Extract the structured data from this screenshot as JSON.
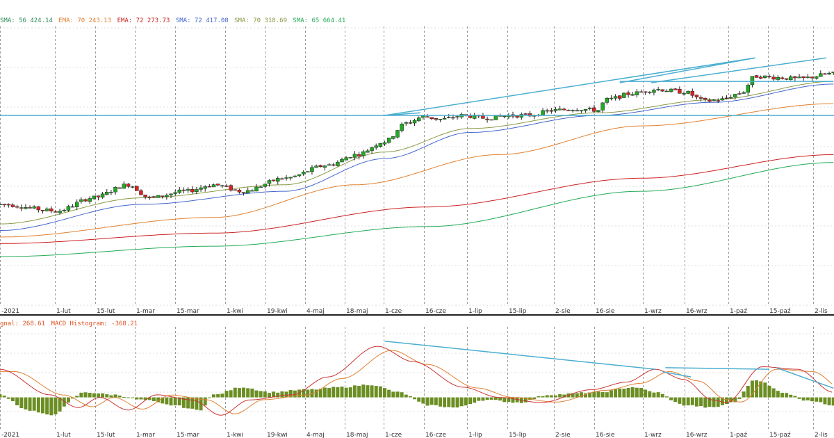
{
  "legend_main": [
    {
      "text": "SMA: 56 424.14",
      "color": "#2e8b57",
      "partial": true
    },
    {
      "text": "EMA: 70 243.13",
      "color": "#e08030"
    },
    {
      "text": "EMA: 72 273.73",
      "color": "#cc2222"
    },
    {
      "text": "SMA: 72 417.08",
      "color": "#4466cc"
    },
    {
      "text": "SMA: 70 318.69",
      "color": "#889944"
    },
    {
      "text": "SMA: 65 664.41",
      "color": "#22aa55"
    }
  ],
  "legend_macd": [
    {
      "text": "gnal: 268.61",
      "color": "#e05020"
    },
    {
      "text": "MACD Histogram: -368.21",
      "color": "#e05020"
    }
  ],
  "x_ticks_main": [
    "-2021",
    "1-lut",
    "15-lut",
    "1-mar",
    "15-mar",
    "1-kwi",
    "19-kwi",
    "4-maj",
    "18-maj",
    "1-cze",
    "16-cze",
    "1-lip",
    "15-lip",
    "2-sie",
    "16-sie",
    "1-wrz",
    "16-wrz",
    "1-paź",
    "15-paź",
    "2-lis"
  ],
  "x_ticks_macd": [
    "-2021",
    "1-lut",
    "15-lut",
    "1-mar",
    "15-mar",
    "1-kwi",
    "19-kwi",
    "4-maj",
    "18-maj",
    "1-cze",
    "16-cze",
    "1-lip",
    "15-lip",
    "2-sie",
    "16-sie",
    "1-wrz",
    "16-wrz",
    "1-paź",
    "15-paź",
    "2-lis"
  ],
  "colors": {
    "up": "#22aa22",
    "down": "#dd2222",
    "wick": "#222222",
    "trend": "#4aaed0",
    "hist": "#6b8e23",
    "macd": "#cc3333",
    "signal": "#e08030",
    "grid_v": "#9a9a9a",
    "grid_h": "#dddddd"
  },
  "chart_data": [
    {
      "type": "candlestick",
      "title": "",
      "price_anchors": [
        [
          0,
          -0.1
        ],
        [
          40,
          -0.15
        ],
        [
          65,
          -0.05
        ],
        [
          90,
          0.05
        ],
        [
          105,
          -0.05
        ],
        [
          130,
          0.0
        ],
        [
          150,
          0.05
        ],
        [
          170,
          0.0
        ],
        [
          200,
          0.1
        ],
        [
          230,
          0.2
        ],
        [
          250,
          0.28
        ],
        [
          270,
          0.38
        ],
        [
          285,
          0.52
        ],
        [
          297,
          0.57
        ],
        [
          310,
          0.55
        ],
        [
          325,
          0.58
        ],
        [
          340,
          0.56
        ],
        [
          360,
          0.58
        ],
        [
          370,
          0.58
        ],
        [
          390,
          0.62
        ],
        [
          405,
          0.63
        ],
        [
          420,
          0.62
        ],
        [
          425,
          0.7
        ],
        [
          445,
          0.75
        ],
        [
          460,
          0.78
        ],
        [
          480,
          0.76
        ],
        [
          495,
          0.69
        ],
        [
          505,
          0.7
        ],
        [
          520,
          0.75
        ],
        [
          530,
          0.88
        ],
        [
          545,
          0.87
        ],
        [
          560,
          0.86
        ],
        [
          585,
          0.9
        ]
      ],
      "ma_lines": [
        {
          "name": "EMA: 72",
          "color": "#cc2222",
          "anchors": [
            [
              0,
              -0.4
            ],
            [
              150,
              -0.32
            ],
            [
              300,
              -0.12
            ],
            [
              450,
              0.1
            ],
            [
              585,
              0.28
            ]
          ]
        },
        {
          "name": "SMA: 65",
          "color": "#22aa55",
          "anchors": [
            [
              0,
              -0.5
            ],
            [
              150,
              -0.42
            ],
            [
              300,
              -0.27
            ],
            [
              450,
              0.0
            ],
            [
              585,
              0.22
            ]
          ]
        },
        {
          "name": "EMA: 70",
          "color": "#e08030",
          "anchors": [
            [
              0,
              -0.35
            ],
            [
              150,
              -0.2
            ],
            [
              250,
              0.05
            ],
            [
              350,
              0.28
            ],
            [
              450,
              0.5
            ],
            [
              585,
              0.67
            ]
          ]
        },
        {
          "name": "SMA: 72",
          "color": "#4466cc",
          "anchors": [
            [
              0,
              -0.3
            ],
            [
              100,
              -0.1
            ],
            [
              200,
              0.0
            ],
            [
              270,
              0.25
            ],
            [
              330,
              0.45
            ],
            [
              420,
              0.58
            ],
            [
              500,
              0.68
            ],
            [
              585,
              0.82
            ]
          ]
        },
        {
          "name": "SMA: 70",
          "color": "#889944",
          "anchors": [
            [
              0,
              -0.25
            ],
            [
              100,
              -0.05
            ],
            [
              200,
              0.05
            ],
            [
              270,
              0.3
            ],
            [
              330,
              0.48
            ],
            [
              420,
              0.6
            ],
            [
              500,
              0.7
            ],
            [
              585,
              0.84
            ]
          ]
        }
      ],
      "trendlines": [
        {
          "from": [
            270,
            0.58
          ],
          "to": [
            295,
            0.6
          ]
        },
        {
          "from": [
            270,
            0.58
          ],
          "to": [
            530,
            1.02
          ]
        },
        {
          "from": [
            435,
            0.83
          ],
          "to": [
            530,
            1.02
          ]
        },
        {
          "from": [
            457,
            0.83
          ],
          "to": [
            580,
            1.02
          ]
        },
        {
          "from": [
            435,
            0.84
          ],
          "to": [
            585,
            0.84
          ]
        }
      ],
      "horizontal_line": 0.58,
      "ylim": [
        -0.85,
        1.25
      ]
    },
    {
      "type": "macd",
      "title": "",
      "macd_anchors": [
        [
          0,
          0.55
        ],
        [
          35,
          0.05
        ],
        [
          55,
          -0.2
        ],
        [
          70,
          0.0
        ],
        [
          90,
          -0.25
        ],
        [
          110,
          0.05
        ],
        [
          135,
          -0.05
        ],
        [
          155,
          -0.35
        ],
        [
          175,
          -0.05
        ],
        [
          205,
          0.05
        ],
        [
          230,
          0.4
        ],
        [
          265,
          1.0
        ],
        [
          290,
          0.7
        ],
        [
          325,
          0.2
        ],
        [
          350,
          0.0
        ],
        [
          380,
          -0.1
        ],
        [
          415,
          0.15
        ],
        [
          440,
          0.3
        ],
        [
          460,
          0.55
        ],
        [
          480,
          0.35
        ],
        [
          500,
          -0.05
        ],
        [
          510,
          -0.1
        ],
        [
          535,
          0.6
        ],
        [
          560,
          0.55
        ],
        [
          585,
          0.1
        ]
      ],
      "hist_anchors": [
        [
          0,
          0.05
        ],
        [
          20,
          -0.25
        ],
        [
          35,
          -0.35
        ],
        [
          60,
          0.1
        ],
        [
          80,
          0.05
        ],
        [
          100,
          -0.05
        ],
        [
          120,
          -0.15
        ],
        [
          140,
          -0.25
        ],
        [
          150,
          0.05
        ],
        [
          170,
          0.2
        ],
        [
          190,
          0.1
        ],
        [
          215,
          0.15
        ],
        [
          240,
          0.2
        ],
        [
          260,
          0.25
        ],
        [
          280,
          0.1
        ],
        [
          300,
          -0.15
        ],
        [
          320,
          -0.2
        ],
        [
          340,
          -0.05
        ],
        [
          365,
          -0.1
        ],
        [
          385,
          0.05
        ],
        [
          420,
          0.1
        ],
        [
          445,
          0.2
        ],
        [
          460,
          0.1
        ],
        [
          480,
          -0.15
        ],
        [
          500,
          -0.2
        ],
        [
          515,
          -0.1
        ],
        [
          530,
          0.35
        ],
        [
          550,
          0.1
        ],
        [
          565,
          -0.05
        ],
        [
          585,
          -0.15
        ]
      ],
      "trendlines": [
        {
          "from": [
            270,
            1.1
          ],
          "to": [
            460,
            0.55
          ]
        },
        {
          "from": [
            465,
            0.5
          ],
          "to": [
            485,
            0.4
          ]
        },
        {
          "from": [
            467,
            0.58
          ],
          "to": [
            540,
            0.55
          ]
        },
        {
          "from": [
            545,
            0.58
          ],
          "to": [
            585,
            0.18
          ]
        }
      ],
      "ylim": [
        -0.55,
        1.3
      ]
    }
  ]
}
